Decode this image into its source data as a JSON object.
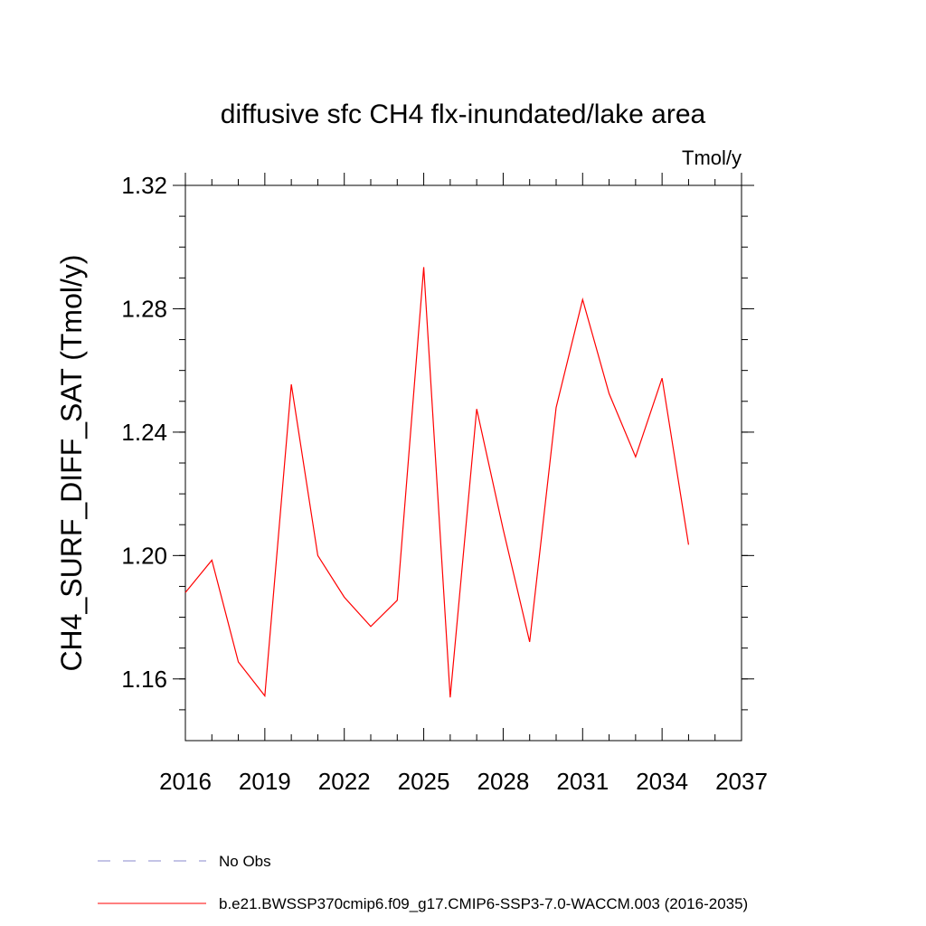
{
  "chart_data": {
    "type": "line",
    "title": "diffusive sfc CH4 flx-inundated/lake area",
    "units": "Tmol/y",
    "xlabel": "",
    "ylabel": "CH4_SURF_DIFF_SAT  (Tmol/y)",
    "xlim": [
      2016,
      2037
    ],
    "ylim": [
      1.14,
      1.32
    ],
    "x_ticks": [
      "2016",
      "2019",
      "2022",
      "2025",
      "2028",
      "2031",
      "2034",
      "2037"
    ],
    "y_ticks": [
      "1.16",
      "1.20",
      "1.24",
      "1.28",
      "1.32"
    ],
    "series": [
      {
        "name": "b.e21.BWSSP370cmip6.f09_g17.CMIP6-SSP3-7.0-WACCM.003 (2016-2035)",
        "color": "#ff0000",
        "style": "solid",
        "x": [
          2016,
          2017,
          2018,
          2019,
          2020,
          2021,
          2022,
          2023,
          2024,
          2025,
          2026,
          2027,
          2028,
          2029,
          2030,
          2031,
          2032,
          2033,
          2034,
          2035
        ],
        "values": [
          1.188,
          1.1985,
          1.1655,
          1.1545,
          1.2555,
          1.2,
          1.1865,
          1.177,
          1.1855,
          1.2935,
          1.154,
          1.2475,
          1.2085,
          1.172,
          1.248,
          1.283,
          1.2525,
          1.232,
          1.2575,
          1.2035
        ]
      }
    ],
    "legend": [
      {
        "label": "No Obs",
        "color": "#8888cc",
        "style": "dashed"
      },
      {
        "label": "b.e21.BWSSP370cmip6.f09_g17.CMIP6-SSP3-7.0-WACCM.003 (2016-2035)",
        "color": "#ff0000",
        "style": "solid"
      }
    ],
    "legend_position": "bottom"
  }
}
